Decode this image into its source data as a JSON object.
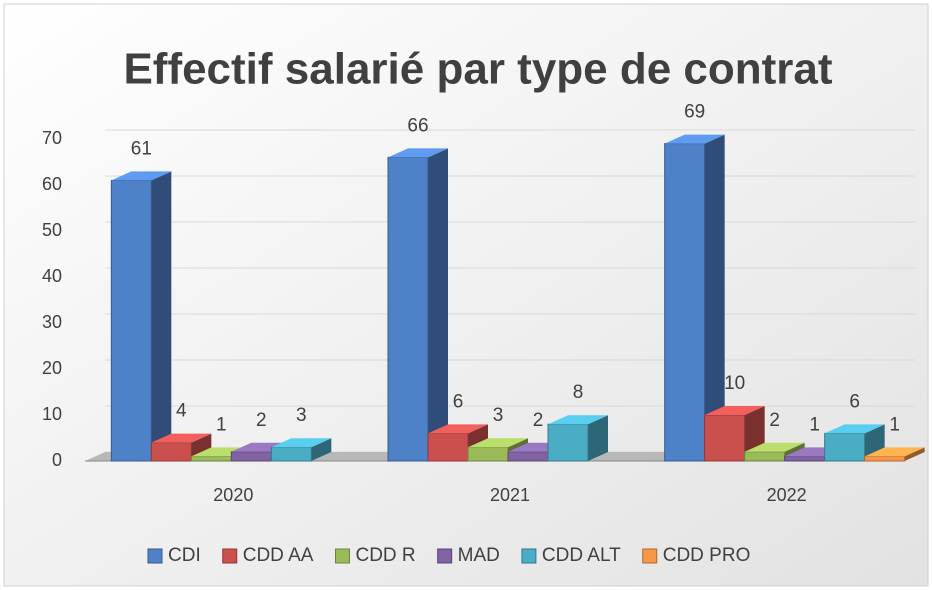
{
  "chart_data": {
    "type": "bar3d",
    "title": "Effectif salarié par type de contrat",
    "categories": [
      "2020",
      "2021",
      "2022"
    ],
    "series": [
      {
        "name": "CDI",
        "color": "#4f81c8",
        "values": [
          61,
          66,
          69
        ]
      },
      {
        "name": "CDD AA",
        "color": "#c9504d",
        "values": [
          4,
          6,
          10
        ]
      },
      {
        "name": "CDD R",
        "color": "#9bbb59",
        "values": [
          1,
          3,
          2
        ]
      },
      {
        "name": "MAD",
        "color": "#8064a2",
        "values": [
          2,
          2,
          1
        ]
      },
      {
        "name": "CDD ALT",
        "color": "#4bacc6",
        "values": [
          3,
          8,
          6
        ]
      },
      {
        "name": "CDD PRO",
        "color": "#f79646",
        "values": [
          null,
          null,
          1
        ]
      }
    ],
    "ylim": [
      0,
      70
    ],
    "yticks": [
      0,
      10,
      20,
      30,
      40,
      50,
      60,
      70
    ],
    "grid": true,
    "legend": "bottom"
  }
}
